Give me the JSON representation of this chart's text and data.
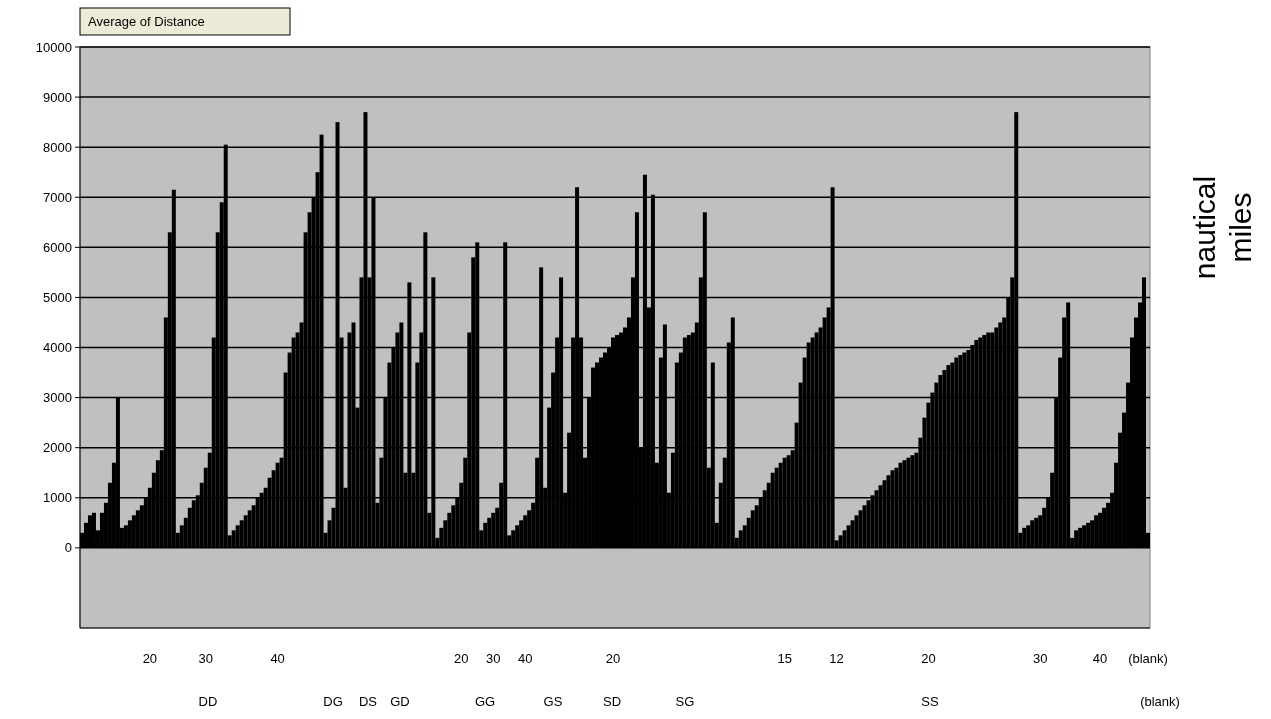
{
  "chart_data": {
    "type": "bar",
    "title": "Average of Distance",
    "ylabel": "nautical miles",
    "color": "#000000",
    "grid": "y",
    "ylim": [
      -1600,
      10000
    ],
    "yticks": [
      0,
      1000,
      2000,
      3000,
      4000,
      5000,
      6000,
      7000,
      8000,
      9000,
      10000
    ],
    "annotations": [
      "DD",
      "DG",
      "DS",
      "GD",
      "GG",
      "GS",
      "SD",
      "SG",
      "SS",
      "(blank)"
    ],
    "categories": [
      null,
      null,
      null,
      null,
      null,
      null,
      null,
      null,
      null,
      null,
      null,
      null,
      null,
      null,
      null,
      null,
      null,
      "20",
      null,
      null,
      null,
      null,
      null,
      null,
      null,
      null,
      null,
      null,
      null,
      null,
      null,
      "30",
      null,
      null,
      null,
      null,
      null,
      null,
      null,
      null,
      null,
      null,
      null,
      null,
      null,
      null,
      null,
      null,
      null,
      "40",
      null,
      null,
      null,
      null,
      null,
      null,
      null,
      null,
      null,
      null,
      null,
      null,
      null,
      null,
      null,
      null,
      null,
      null,
      null,
      null,
      null,
      null,
      null,
      null,
      null,
      null,
      null,
      null,
      null,
      null,
      null,
      null,
      null,
      null,
      null,
      null,
      null,
      null,
      null,
      null,
      null,
      null,
      null,
      null,
      null,
      "20",
      null,
      null,
      null,
      null,
      null,
      null,
      null,
      "30",
      null,
      null,
      null,
      null,
      null,
      null,
      null,
      "40",
      null,
      null,
      null,
      null,
      null,
      null,
      null,
      null,
      null,
      null,
      null,
      null,
      null,
      null,
      null,
      null,
      null,
      null,
      null,
      null,
      null,
      "20",
      null,
      null,
      null,
      null,
      null,
      null,
      null,
      null,
      null,
      null,
      null,
      null,
      null,
      null,
      null,
      null,
      null,
      null,
      null,
      null,
      null,
      null,
      null,
      null,
      null,
      null,
      null,
      null,
      null,
      null,
      null,
      null,
      null,
      null,
      null,
      null,
      null,
      null,
      null,
      null,
      null,
      null,
      "15",
      null,
      null,
      null,
      null,
      null,
      null,
      null,
      null,
      null,
      null,
      null,
      null,
      "12",
      null,
      null,
      null,
      null,
      null,
      null,
      null,
      null,
      null,
      null,
      null,
      null,
      null,
      null,
      null,
      null,
      null,
      null,
      null,
      null,
      null,
      null,
      "20",
      null,
      null,
      null,
      null,
      null,
      null,
      null,
      null,
      null,
      null,
      null,
      null,
      null,
      null,
      null,
      null,
      null,
      null,
      null,
      null,
      null,
      null,
      null,
      null,
      null,
      null,
      null,
      "30",
      null,
      null,
      null,
      null,
      null,
      null,
      null,
      null,
      null,
      null,
      null,
      null,
      null,
      null,
      "40",
      null,
      null,
      null,
      null,
      null,
      null,
      null,
      null,
      null,
      null,
      null,
      "(blank)"
    ],
    "values": [
      300,
      500,
      650,
      700,
      350,
      700,
      900,
      1300,
      1700,
      3000,
      400,
      450,
      550,
      650,
      750,
      850,
      1000,
      1200,
      1500,
      1750,
      1950,
      4600,
      6300,
      7150,
      300,
      450,
      600,
      800,
      950,
      1050,
      1300,
      1600,
      1900,
      4200,
      6300,
      6900,
      8050,
      250,
      350,
      450,
      550,
      650,
      750,
      850,
      1000,
      1100,
      1200,
      1400,
      1550,
      1700,
      1800,
      3500,
      3900,
      4200,
      4300,
      4500,
      6300,
      6700,
      7000,
      7500,
      8250,
      300,
      550,
      800,
      8500,
      4200,
      1200,
      4300,
      4500,
      2800,
      5400,
      8700,
      5400,
      7000,
      900,
      1800,
      3000,
      3700,
      4000,
      4300,
      4500,
      1500,
      5300,
      1500,
      3700,
      4300,
      6300,
      700,
      5400,
      200,
      400,
      550,
      700,
      850,
      1000,
      1300,
      1800,
      4300,
      5800,
      6100,
      350,
      500,
      600,
      700,
      800,
      1300,
      6100,
      250,
      350,
      450,
      550,
      650,
      750,
      900,
      1800,
      5600,
      1200,
      2800,
      3500,
      4200,
      5400,
      1100,
      2300,
      4200,
      7200,
      4200,
      1800,
      3000,
      3600,
      3700,
      3800,
      3900,
      4000,
      4200,
      4250,
      4300,
      4400,
      4600,
      5400,
      6700,
      2000,
      7450,
      4800,
      7050,
      1700,
      3800,
      4460,
      1100,
      1900,
      3700,
      3900,
      4200,
      4250,
      4300,
      4500,
      5400,
      6700,
      1600,
      3700,
      500,
      1300,
      1800,
      4100,
      4600,
      200,
      350,
      450,
      600,
      750,
      850,
      1000,
      1150,
      1300,
      1500,
      1600,
      1700,
      1800,
      1850,
      1950,
      2500,
      3300,
      3800,
      4100,
      4200,
      4300,
      4400,
      4600,
      4800,
      7200,
      150,
      250,
      350,
      450,
      550,
      650,
      750,
      850,
      950,
      1050,
      1150,
      1250,
      1350,
      1450,
      1550,
      1600,
      1700,
      1750,
      1800,
      1850,
      1900,
      2200,
      2600,
      2900,
      3100,
      3300,
      3450,
      3550,
      3650,
      3700,
      3800,
      3850,
      3900,
      3950,
      4050,
      4150,
      4200,
      4250,
      4300,
      4300,
      4400,
      4500,
      4600,
      5000,
      5400,
      8700,
      300,
      400,
      450,
      550,
      600,
      650,
      800,
      1000,
      1500,
      3000,
      3800,
      4600,
      4900,
      200,
      350,
      400,
      450,
      500,
      550,
      650,
      700,
      800,
      900,
      1100,
      1700,
      2300,
      2700,
      3300,
      4200,
      4600,
      4900,
      5400,
      300
    ]
  }
}
